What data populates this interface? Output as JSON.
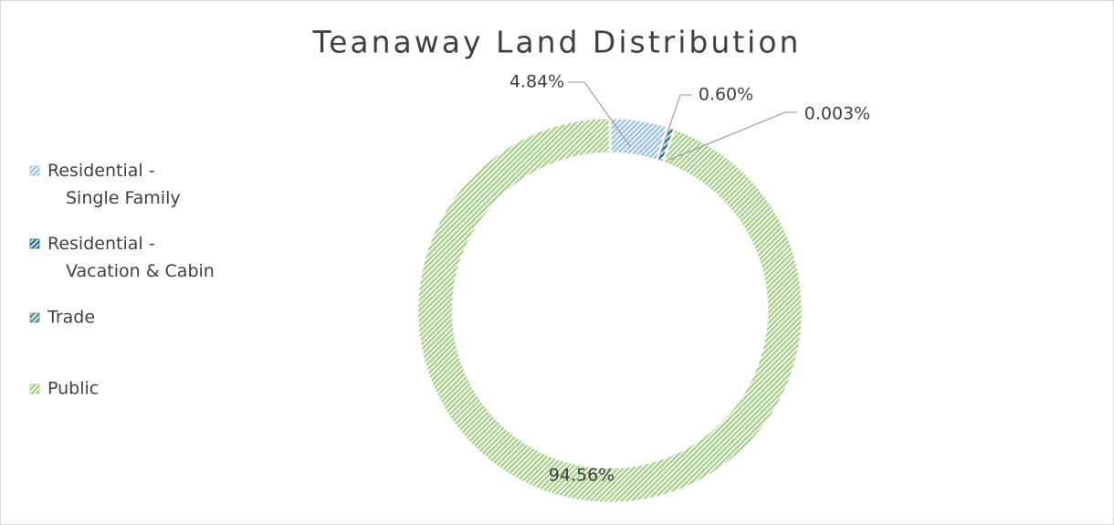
{
  "chart_data": {
    "type": "donut",
    "title": "Teanaway Land Distribution",
    "series": [
      {
        "name": "Land Distribution",
        "categories": [
          "Residential - Single Family",
          "Residential - Vacation & Cabin",
          "Trade",
          "Public"
        ],
        "values": [
          4.84,
          0.6,
          0.003,
          94.56
        ],
        "value_labels": [
          "4.84%",
          "0.60%",
          "0.003%",
          "94.56%"
        ],
        "colors": [
          "#9dc3e6",
          "#1f6e8c",
          "#5b8f99",
          "#a9d18e"
        ]
      }
    ],
    "legend": "left"
  }
}
